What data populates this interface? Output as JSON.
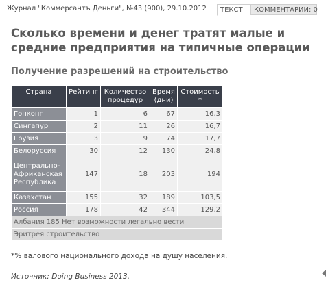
{
  "header": {
    "source": "Журнал \"Коммерсантъ Деньги\", №43 (900), 29.10.2012",
    "tabs": [
      {
        "label": "ТЕКСТ",
        "active": true
      },
      {
        "label": "КОММЕНТАРИИ: 0",
        "active": false
      }
    ]
  },
  "article": {
    "title": "Сколько времени и денег тратят малые и средние предприятия на типичные операции",
    "subtitle": "Получение разрешений на строительство"
  },
  "table": {
    "headers": [
      "Страна",
      "Рейтинг",
      "Количество процедур",
      "Время (дни)",
      "Стоимость *"
    ],
    "rows": [
      [
        "Гонконг",
        "1",
        "6",
        "67",
        "16,3"
      ],
      [
        "Сингапур",
        "2",
        "11",
        "26",
        "16,7"
      ],
      [
        "Грузия",
        "3",
        "9",
        "74",
        "17,7"
      ],
      [
        "Белоруссия",
        "30",
        "12",
        "130",
        "24,8"
      ],
      [
        "Центрально-Африканская Республика",
        "147",
        "18",
        "203",
        "194"
      ],
      [
        "Казахстан",
        "155",
        "32",
        "189",
        "103,5"
      ],
      [
        "Россия",
        "178",
        "42",
        "344",
        "129,2"
      ]
    ],
    "footer_rows": [
      "Албания 185 Нет возможности легально вести",
      "Эритрея строительство"
    ]
  },
  "notes": {
    "footnote": "*% валового национального дохода на душу населения.",
    "source": "Источник: Doing Business 2013."
  },
  "colors": {
    "header_bg": "#3a3f4a",
    "country_bg": "#8c8f96",
    "cell_bg": "#f0f0f0",
    "footer_bg": "#d9d9d9"
  }
}
